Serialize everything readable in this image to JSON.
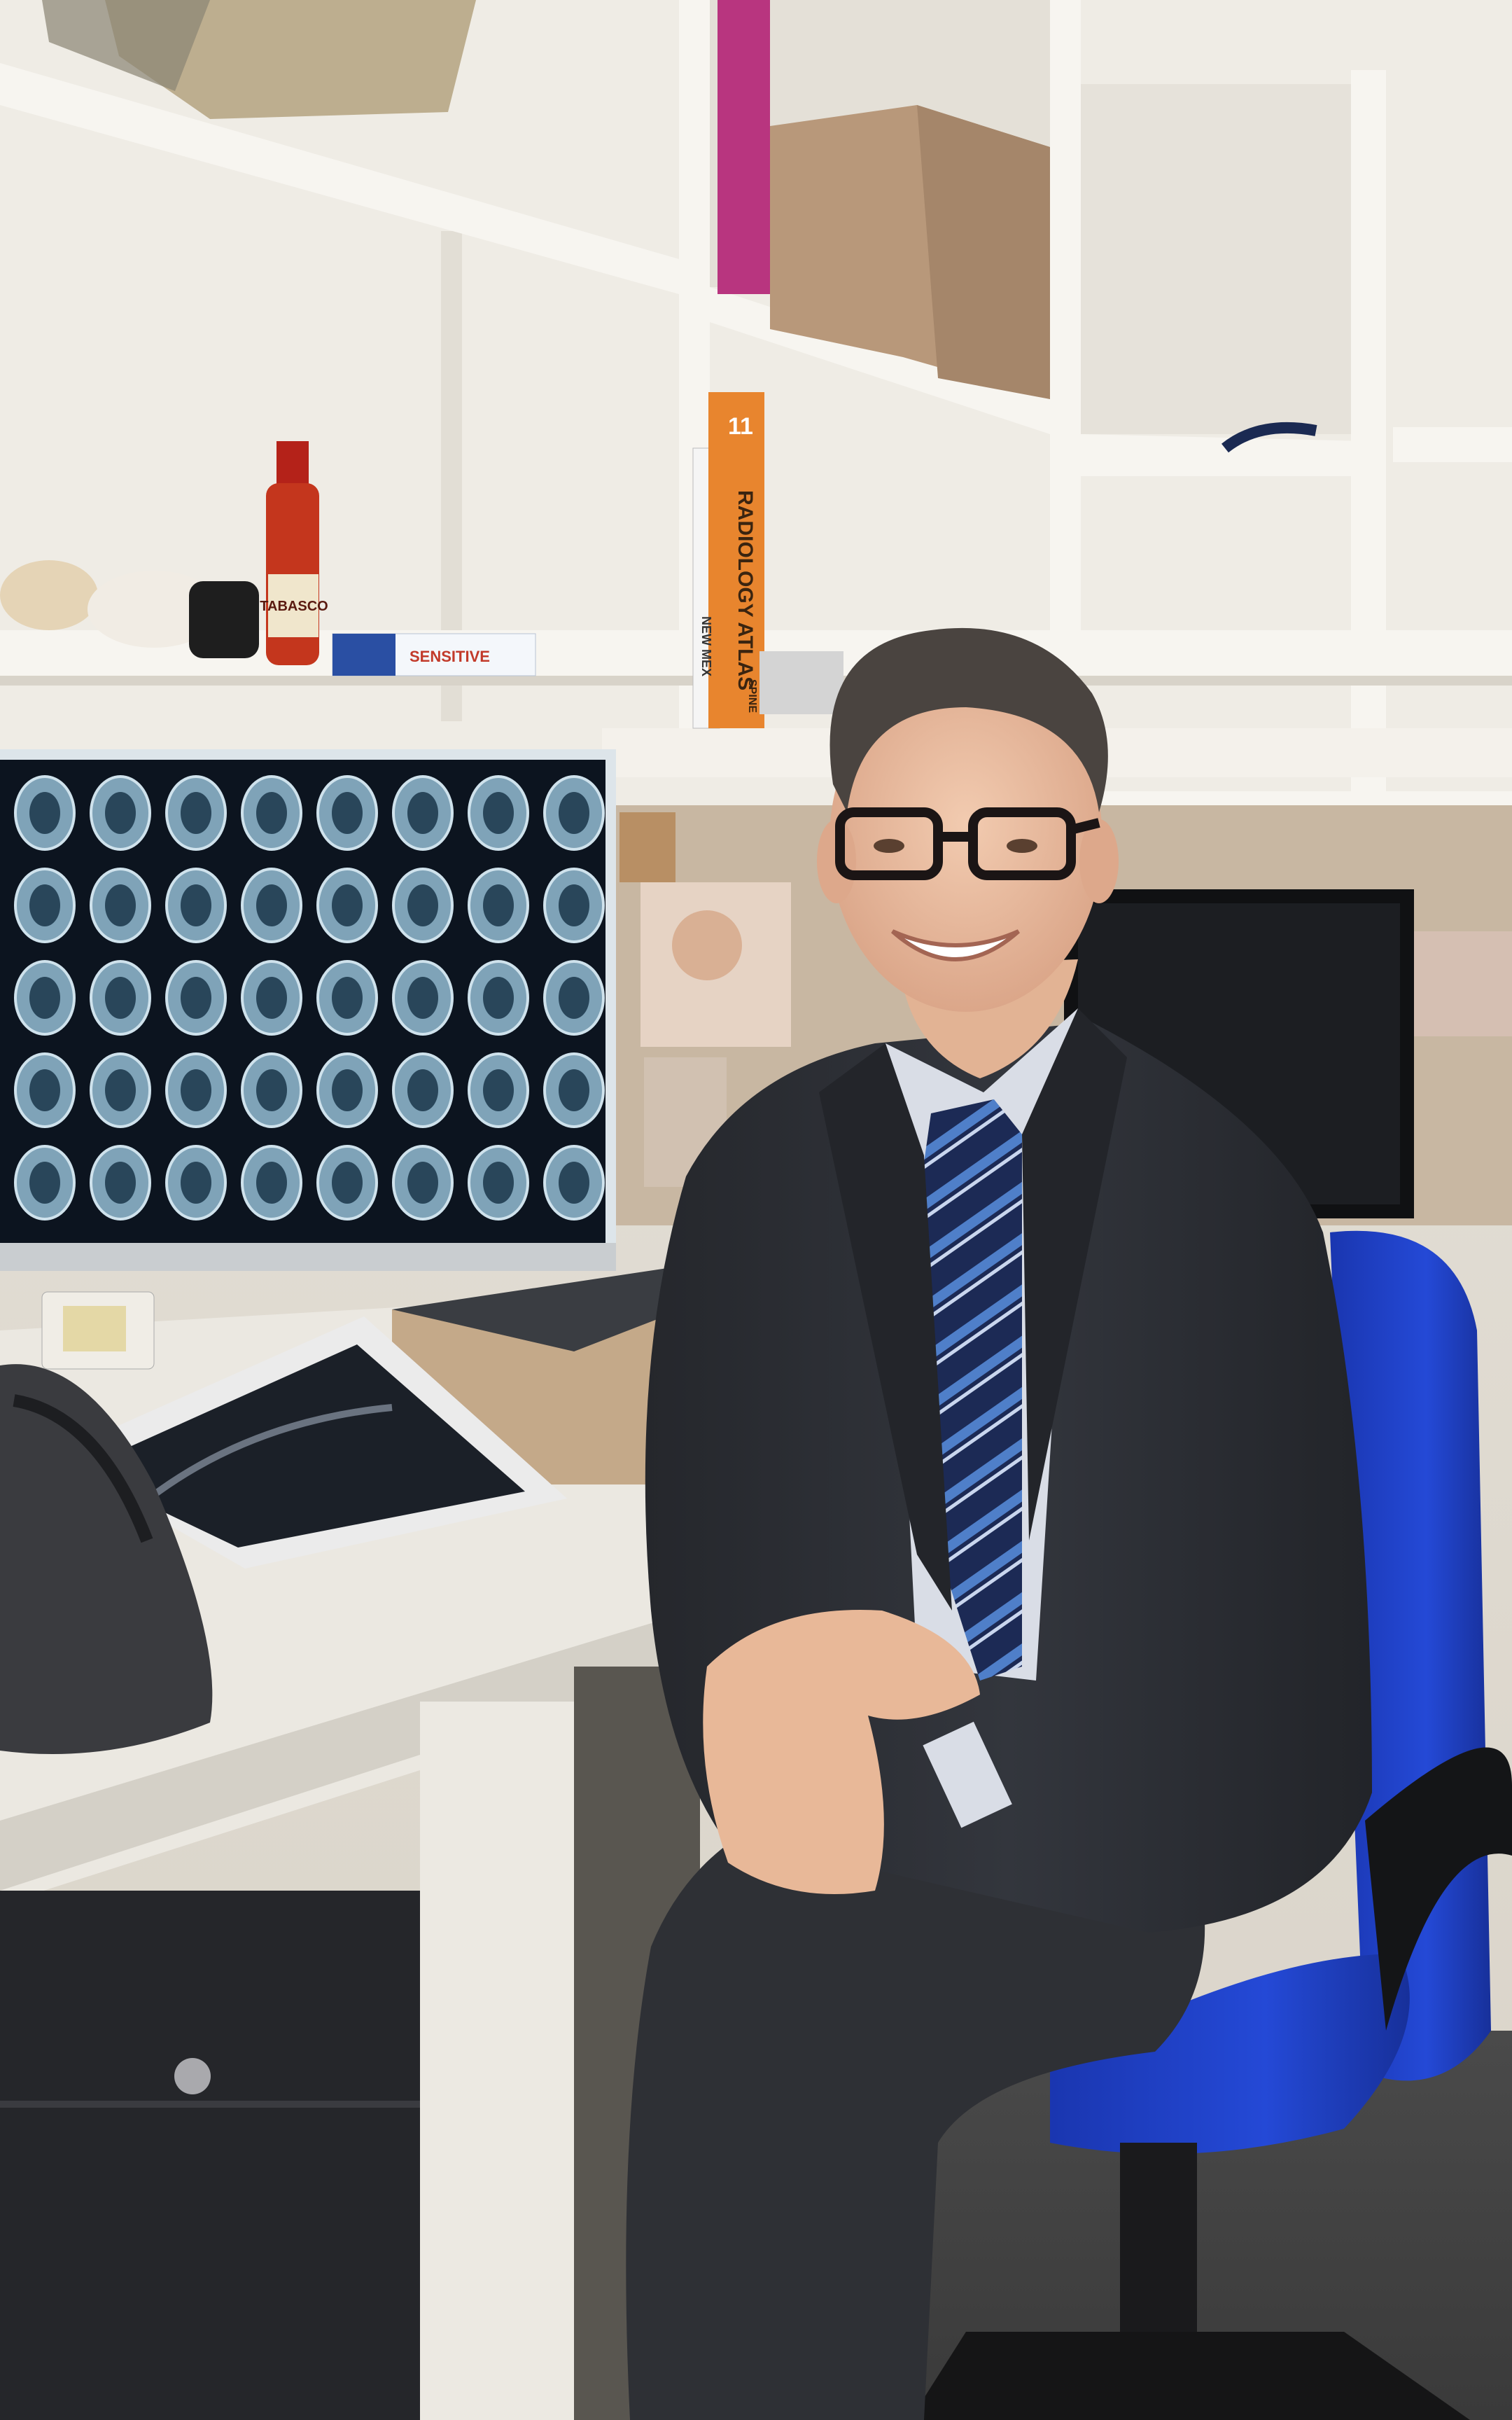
{
  "photo": {
    "subject": "smiling man in dark suit, glasses and striped tie seated on blue office chair at a desk",
    "setting": "radiology office with white shelving, MRI light box, computer monitor and family photos"
  },
  "books": {
    "orange_spine_title": "RADIOLOGY ATLAS",
    "orange_spine_number": "11",
    "white_spine_title": "NEW MEX",
    "white_spine_sub": "SPINE"
  },
  "items": {
    "hot_sauce_label": "TABASCO",
    "toothpaste_label": "SENSITIVE"
  },
  "colors": {
    "suit": "#2b2d33",
    "chair_blue": "#1f3fc4",
    "shelf_white": "#f2f0ea",
    "lightbox_glow": "#e8f2f8",
    "tie_stripe": "#4f7fc9"
  }
}
